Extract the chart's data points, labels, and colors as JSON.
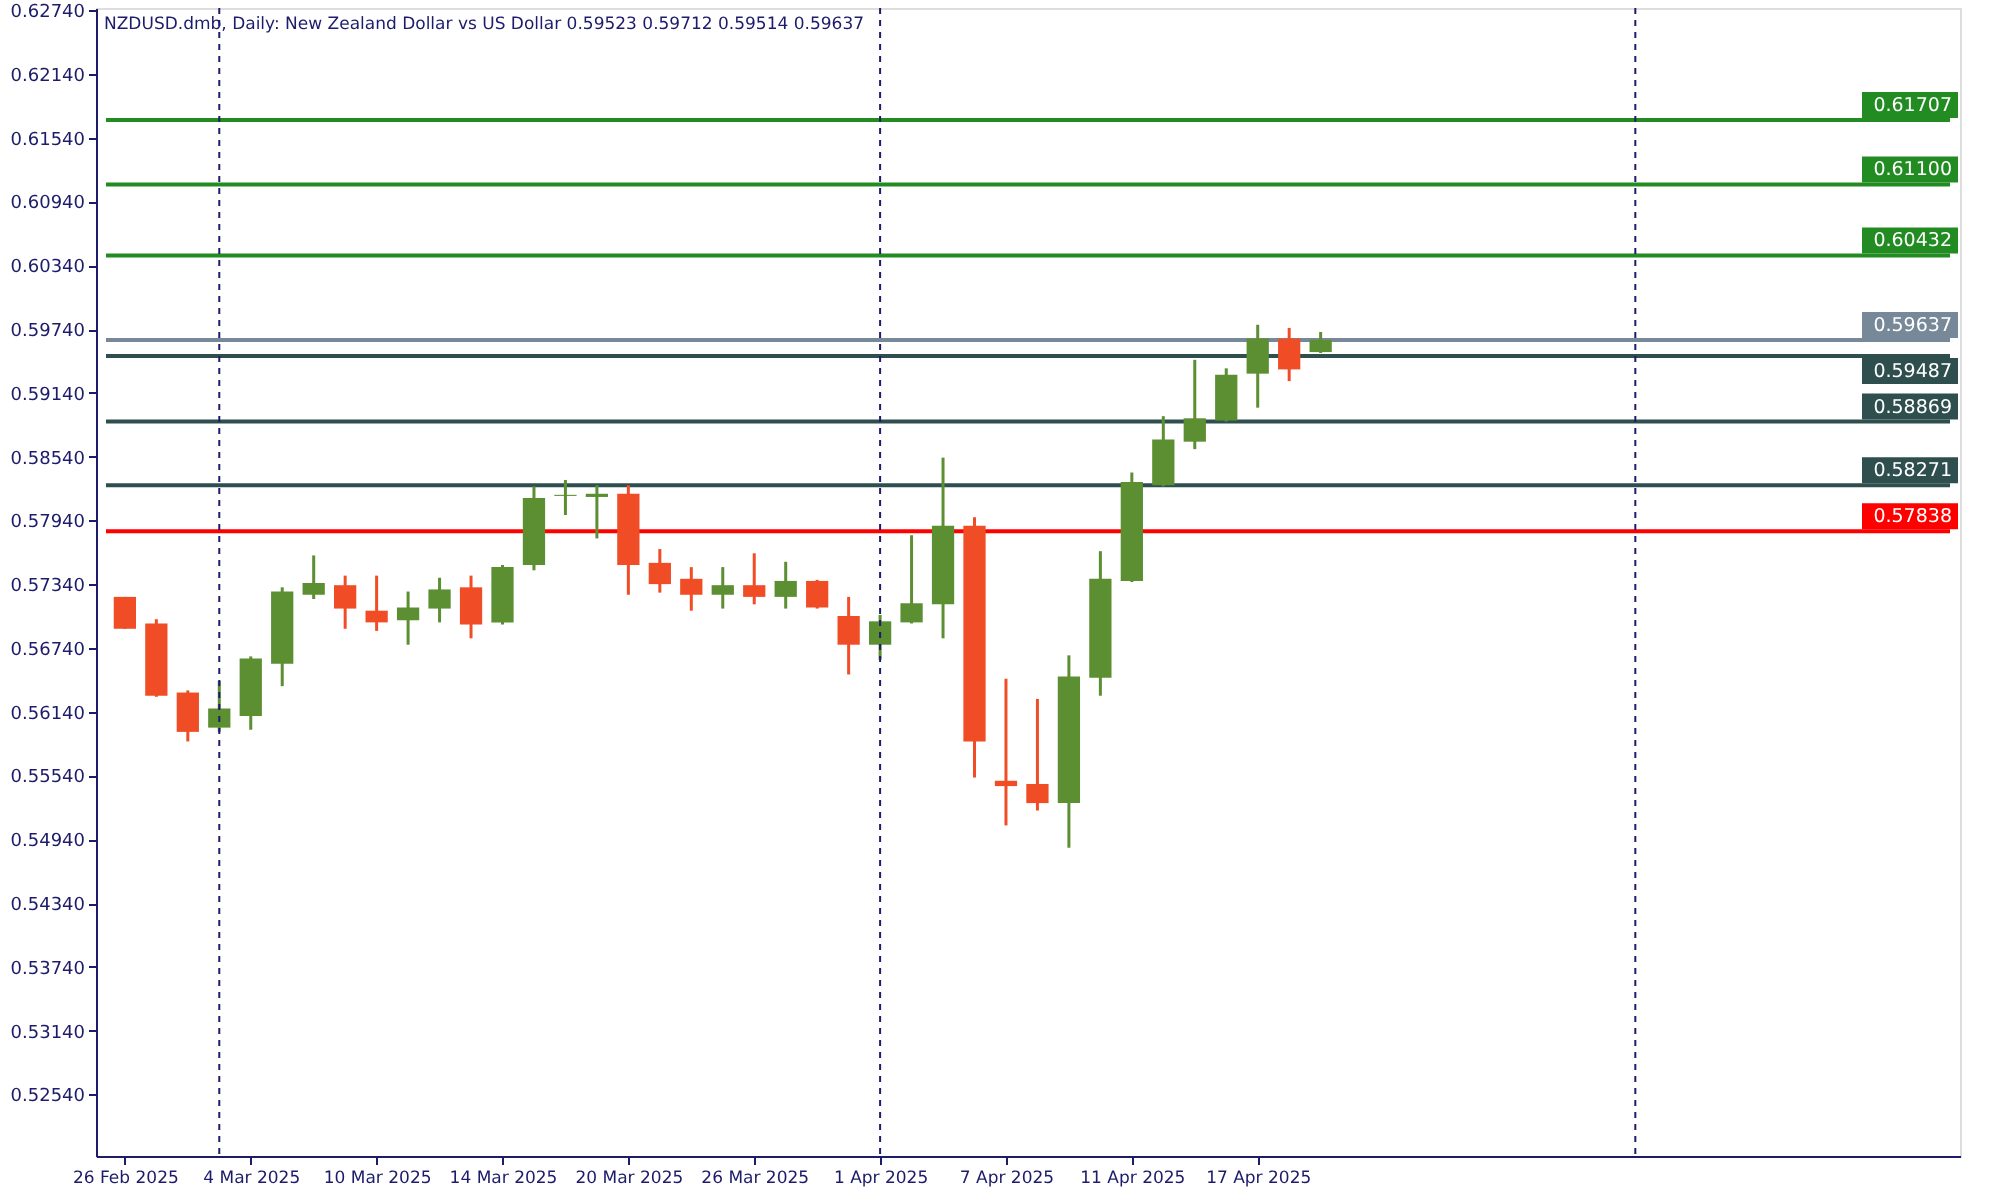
{
  "chart_data": {
    "type": "candlestick",
    "title": "NZDUSD.dmb, Daily:  New Zealand Dollar vs US Dollar  0.59523 0.59712 0.59514 0.59637",
    "categories": [
      "26 Feb 2025",
      null,
      null,
      null,
      "4 Mar 2025",
      null,
      null,
      null,
      "10 Mar 2025",
      null,
      null,
      null,
      "14 Mar 2025",
      null,
      null,
      null,
      "20 Mar 2025",
      null,
      null,
      null,
      "26 Mar 2025",
      null,
      null,
      null,
      "1 Apr 2025",
      null,
      null,
      null,
      "7 Apr 2025",
      null,
      null,
      null,
      "11 Apr 2025",
      null,
      null,
      null,
      "17 Apr 2025",
      null,
      null
    ],
    "ohlc": [
      [
        0.5722,
        0.5722,
        0.5692,
        0.5692
      ],
      [
        0.5697,
        0.5701,
        0.5628,
        0.5629
      ],
      [
        0.5632,
        0.5634,
        0.5586,
        0.5595
      ],
      [
        0.5599,
        0.5643,
        0.5595,
        0.5617
      ],
      [
        0.561,
        0.5666,
        0.5597,
        0.5664
      ],
      [
        0.5659,
        0.5731,
        0.5638,
        0.5727
      ],
      [
        0.5724,
        0.5761,
        0.572,
        0.5735
      ],
      [
        0.5733,
        0.5742,
        0.5692,
        0.5711
      ],
      [
        0.5709,
        0.5742,
        0.569,
        0.5698
      ],
      [
        0.57,
        0.5727,
        0.5677,
        0.5712
      ],
      [
        0.5711,
        0.574,
        0.5698,
        0.5729
      ],
      [
        0.5731,
        0.5742,
        0.5683,
        0.5696
      ],
      [
        0.5698,
        0.5752,
        0.5696,
        0.575
      ],
      [
        0.5752,
        0.5826,
        0.5747,
        0.5815
      ],
      [
        0.5817,
        0.5832,
        0.5799,
        0.5818
      ],
      [
        0.5816,
        0.5827,
        0.5777,
        0.5819
      ],
      [
        0.5819,
        0.5827,
        0.5724,
        0.5752
      ],
      [
        0.5754,
        0.5767,
        0.5726,
        0.5734
      ],
      [
        0.5739,
        0.575,
        0.5709,
        0.5724
      ],
      [
        0.5724,
        0.575,
        0.5711,
        0.5733
      ],
      [
        0.5733,
        0.5763,
        0.5715,
        0.5722
      ],
      [
        0.5722,
        0.5755,
        0.5711,
        0.5737
      ],
      [
        0.5737,
        0.5738,
        0.5711,
        0.5712
      ],
      [
        0.5704,
        0.5722,
        0.5649,
        0.5677
      ],
      [
        0.5677,
        0.5705,
        0.5663,
        0.5699
      ],
      [
        0.5698,
        0.578,
        0.5697,
        0.5716
      ],
      [
        0.5715,
        0.5853,
        0.5683,
        0.5789
      ],
      [
        0.5789,
        0.5797,
        0.5552,
        0.5586
      ],
      [
        0.5549,
        0.5645,
        0.5507,
        0.5544
      ],
      [
        0.5546,
        0.5626,
        0.5521,
        0.5528
      ],
      [
        0.5528,
        0.5667,
        0.5486,
        0.5647
      ],
      [
        0.5646,
        0.5765,
        0.5629,
        0.5739
      ],
      [
        0.5737,
        0.5839,
        0.5736,
        0.583
      ],
      [
        0.5827,
        0.5892,
        0.5826,
        0.587
      ],
      [
        0.5868,
        0.5945,
        0.5861,
        0.589
      ],
      [
        0.5888,
        0.5937,
        0.5887,
        0.5931
      ],
      [
        0.5932,
        0.5978,
        0.59,
        0.5965
      ],
      [
        0.5965,
        0.5975,
        0.5925,
        0.5936
      ],
      [
        0.59523,
        0.59712,
        0.59514,
        0.59637
      ]
    ],
    "colors": [
      "#f04d27",
      "#f04d27",
      "#f04d27",
      "#5b8f31",
      "#5b8f31",
      "#5b8f31",
      "#5b8f31",
      "#f04d27",
      "#f04d27",
      "#5b8f31",
      "#5b8f31",
      "#f04d27",
      "#5b8f31",
      "#5b8f31",
      "#5b8f31",
      "#5b8f31",
      "#f04d27",
      "#f04d27",
      "#f04d27",
      "#5b8f31",
      "#f04d27",
      "#5b8f31",
      "#f04d27",
      "#f04d27",
      "#5b8f31",
      "#5b8f31",
      "#5b8f31",
      "#f04d27",
      "#f04d27",
      "#f04d27",
      "#5b8f31",
      "#5b8f31",
      "#5b8f31",
      "#5b8f31",
      "#5b8f31",
      "#5b8f31",
      "#5b8f31",
      "#f04d27",
      "#5b8f31"
    ],
    "ylim": [
      0.5196,
      0.6276
    ],
    "yticks": [
      {
        "value": 0.6274,
        "label": "0.62740"
      },
      {
        "value": 0.6214,
        "label": "0.62140"
      },
      {
        "value": 0.6154,
        "label": "0.61540"
      },
      {
        "value": 0.6094,
        "label": "0.60940"
      },
      {
        "value": 0.6034,
        "label": "0.60340"
      },
      {
        "value": 0.5974,
        "label": "0.59740"
      },
      {
        "value": 0.5914,
        "label": "0.59140"
      },
      {
        "value": 0.5854,
        "label": "0.58540"
      },
      {
        "value": 0.5794,
        "label": "0.57940"
      },
      {
        "value": 0.5734,
        "label": "0.57340"
      },
      {
        "value": 0.5674,
        "label": "0.56740"
      },
      {
        "value": 0.5614,
        "label": "0.56140"
      },
      {
        "value": 0.5554,
        "label": "0.55540"
      },
      {
        "value": 0.5494,
        "label": "0.54940"
      },
      {
        "value": 0.5434,
        "label": "0.54340"
      },
      {
        "value": 0.5374,
        "label": "0.53740"
      },
      {
        "value": 0.5314,
        "label": "0.53140"
      },
      {
        "value": 0.5254,
        "label": "0.52540"
      }
    ],
    "ref_lines": [
      {
        "axis": "y",
        "value": 0.61707,
        "label": "0.61707",
        "color": "#228b22"
      },
      {
        "axis": "y",
        "value": 0.611,
        "label": "0.61100",
        "color": "#228b22"
      },
      {
        "axis": "y",
        "value": 0.60432,
        "label": "0.60432",
        "color": "#228b22"
      },
      {
        "axis": "y",
        "value": 0.59637,
        "label": "0.59637",
        "color": "#778899"
      },
      {
        "axis": "y",
        "value": 0.59487,
        "label": "0.59487",
        "color": "#2f4f4f"
      },
      {
        "axis": "y",
        "value": 0.58869,
        "label": "0.58869",
        "color": "#2f4f4f"
      },
      {
        "axis": "y",
        "value": 0.58271,
        "label": "0.58271",
        "color": "#2f4f4f"
      },
      {
        "axis": "y",
        "value": 0.57838,
        "label": "0.57838",
        "color": "#ff0000"
      }
    ]
  }
}
